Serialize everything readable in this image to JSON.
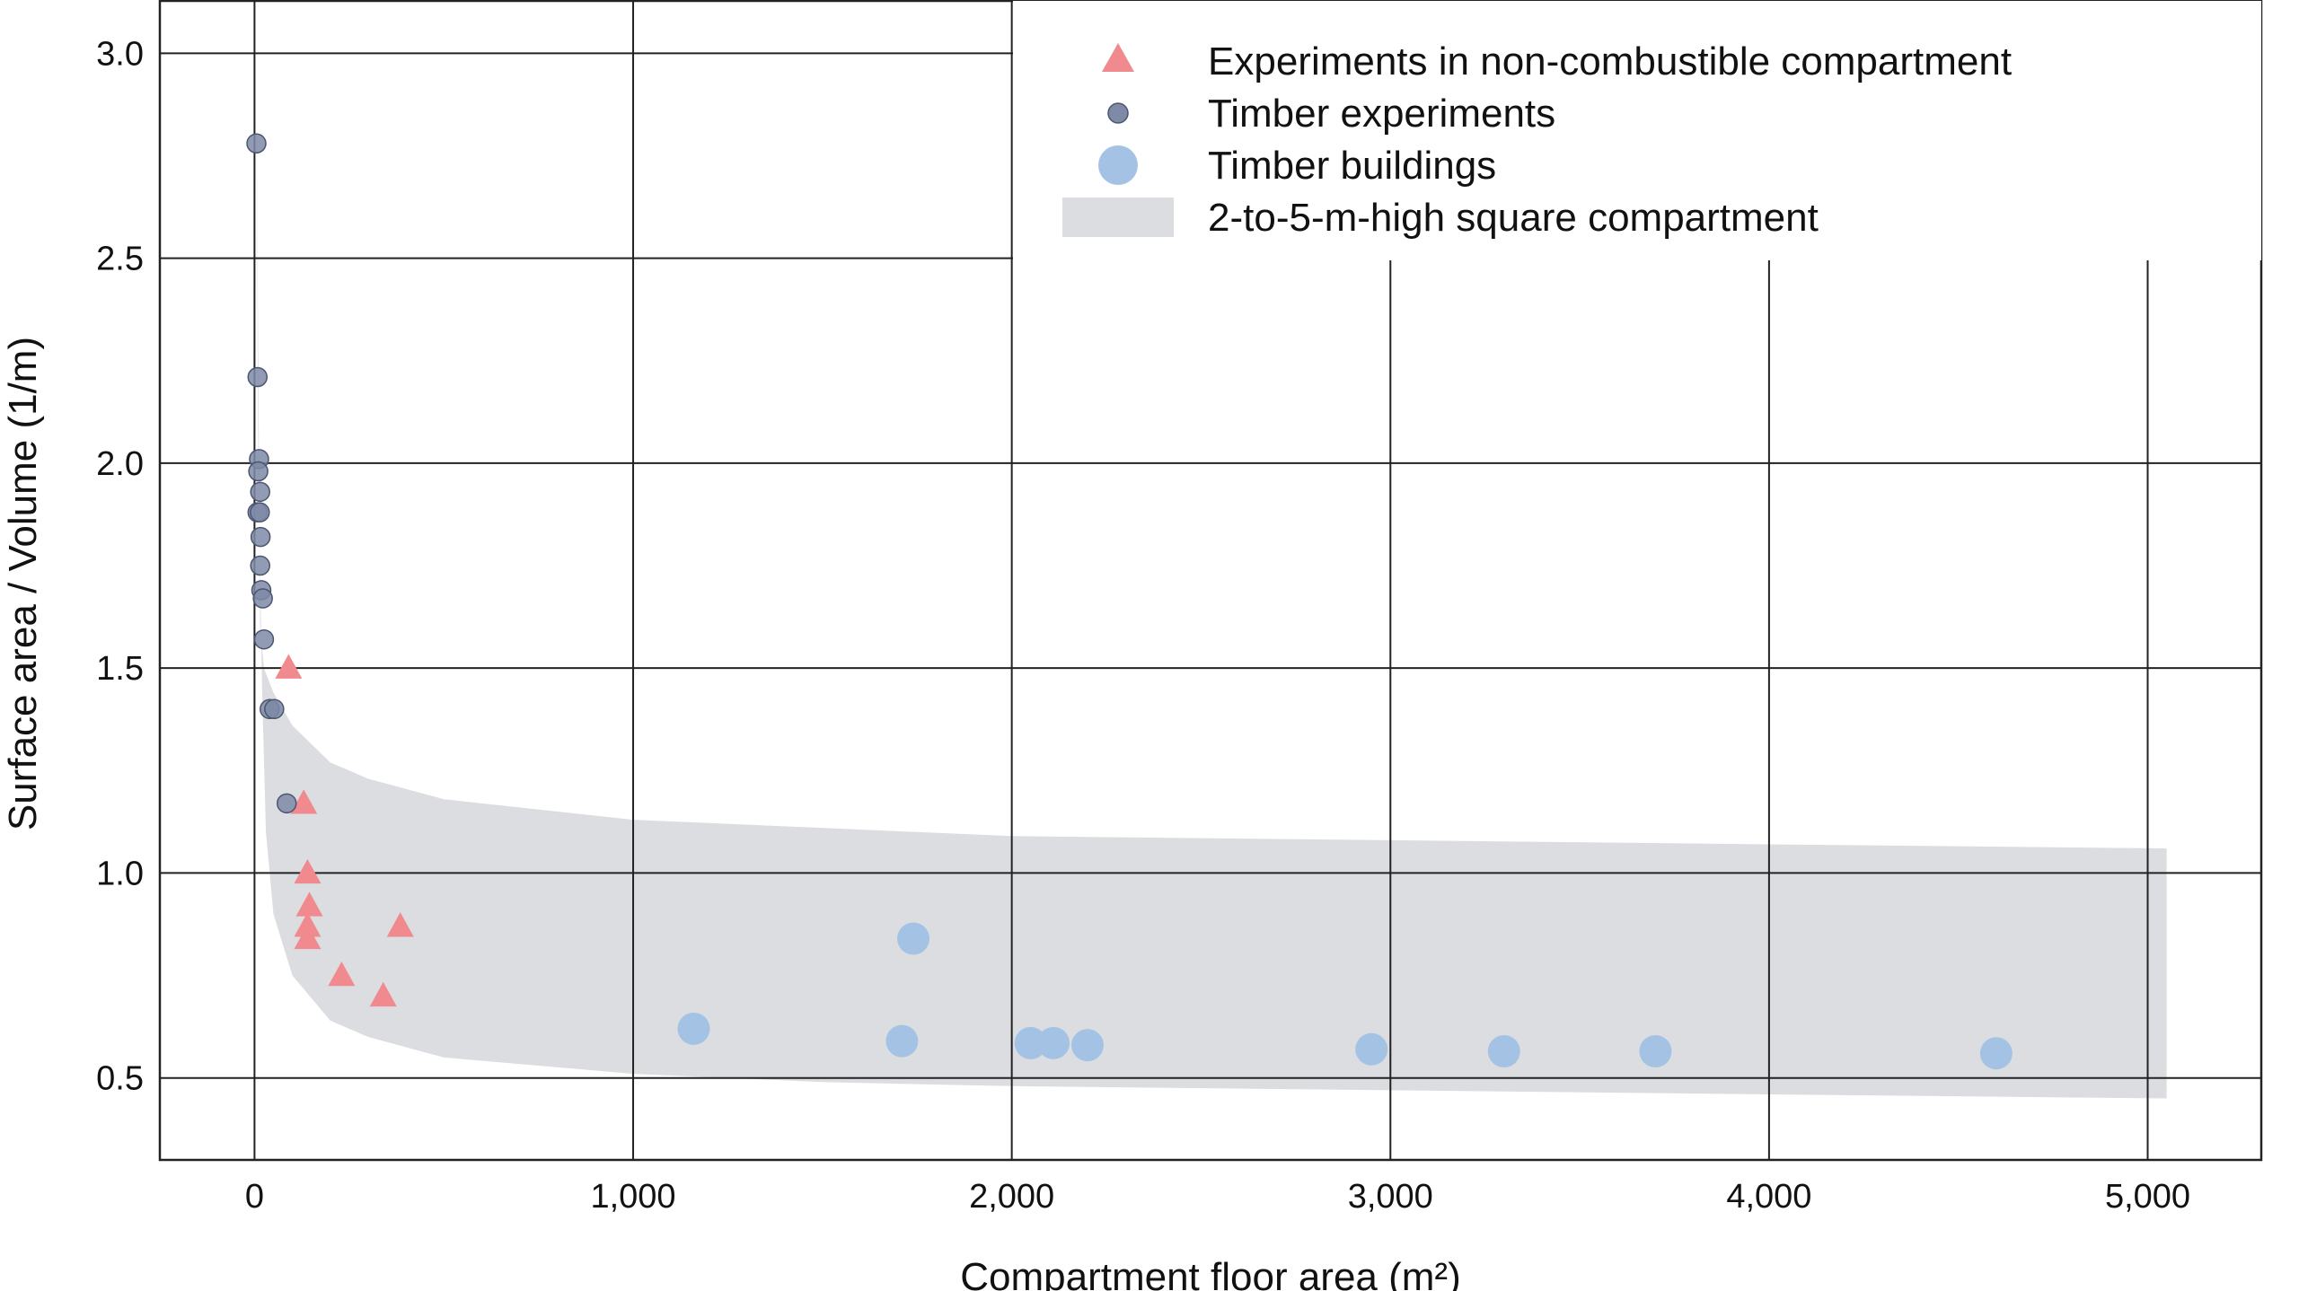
{
  "chart_data": {
    "type": "scatter",
    "title": "",
    "xlabel": "Compartment floor area (m²)",
    "ylabel": "Surface area / Volume (1/m)",
    "xlim": [
      -250,
      5300
    ],
    "ylim": [
      0.3,
      3.13
    ],
    "grid": true,
    "x_ticks": [
      0,
      1000,
      2000,
      3000,
      4000,
      5000
    ],
    "x_tick_labels": [
      "0",
      "1,000",
      "2,000",
      "3,000",
      "4,000",
      "5,000"
    ],
    "y_ticks": [
      0.5,
      1.0,
      1.5,
      2.0,
      2.5,
      3.0
    ],
    "y_tick_labels": [
      "0.5",
      "1.0",
      "1.5",
      "2.0",
      "2.5",
      "3.0"
    ],
    "legend_position": "top-right",
    "colors": {
      "non_combustible": "#f08a8e",
      "timber_experiments": "#7e8aa6",
      "timber_buildings": "#a4c3e4",
      "band": "#dcdde1",
      "grid": "#222222"
    },
    "series": [
      {
        "name": "Experiments in non-combustible compartment",
        "marker": "triangle",
        "points": [
          [
            90,
            1.5
          ],
          [
            130,
            1.17
          ],
          [
            140,
            1.0
          ],
          [
            145,
            0.92
          ],
          [
            140,
            0.87
          ],
          [
            140,
            0.84
          ],
          [
            230,
            0.75
          ],
          [
            340,
            0.7
          ],
          [
            385,
            0.87
          ]
        ]
      },
      {
        "name": "Timber experiments",
        "marker": "circle-small",
        "points": [
          [
            5,
            2.78
          ],
          [
            8,
            2.21
          ],
          [
            12,
            2.01
          ],
          [
            10,
            1.98
          ],
          [
            15,
            1.93
          ],
          [
            8,
            1.88
          ],
          [
            14,
            1.88
          ],
          [
            16,
            1.82
          ],
          [
            15,
            1.75
          ],
          [
            18,
            1.69
          ],
          [
            22,
            1.67
          ],
          [
            25,
            1.57
          ],
          [
            40,
            1.4
          ],
          [
            52,
            1.4
          ],
          [
            85,
            1.17
          ]
        ]
      },
      {
        "name": "Timber buildings",
        "marker": "circle-large",
        "points": [
          [
            1160,
            0.62
          ],
          [
            1710,
            0.59
          ],
          [
            1740,
            0.84
          ],
          [
            2050,
            0.585
          ],
          [
            2110,
            0.585
          ],
          [
            2200,
            0.58
          ],
          [
            2950,
            0.57
          ],
          [
            3300,
            0.565
          ],
          [
            3700,
            0.565
          ],
          [
            4600,
            0.56
          ]
        ]
      }
    ],
    "band": {
      "name": "2-to-5-m-high square compartment",
      "upper": [
        [
          5,
          2.9
        ],
        [
          15,
          1.6
        ],
        [
          25,
          1.5
        ],
        [
          50,
          1.44
        ],
        [
          100,
          1.36
        ],
        [
          200,
          1.27
        ],
        [
          300,
          1.23
        ],
        [
          500,
          1.18
        ],
        [
          1000,
          1.13
        ],
        [
          2000,
          1.09
        ],
        [
          3000,
          1.08
        ],
        [
          4000,
          1.07
        ],
        [
          5050,
          1.06
        ]
      ],
      "lower": [
        [
          5050,
          0.45
        ],
        [
          4000,
          0.46
        ],
        [
          3000,
          0.47
        ],
        [
          2000,
          0.48
        ],
        [
          1500,
          0.49
        ],
        [
          1000,
          0.51
        ],
        [
          500,
          0.55
        ],
        [
          300,
          0.6
        ],
        [
          200,
          0.64
        ],
        [
          100,
          0.75
        ],
        [
          50,
          0.9
        ],
        [
          30,
          1.1
        ],
        [
          20,
          1.45
        ],
        [
          10,
          2.0
        ]
      ]
    }
  }
}
